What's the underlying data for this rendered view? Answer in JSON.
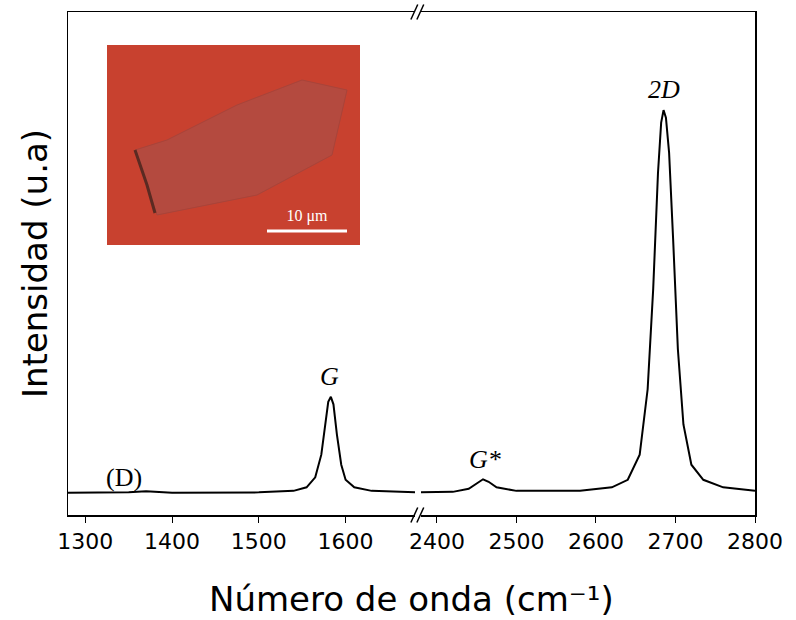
{
  "chart_data": {
    "type": "line",
    "xlabel": "Número de onda (cm⁻¹)",
    "ylabel": "Intensidad (u.a)",
    "color": "#000000",
    "x": [
      1280,
      1350,
      1370,
      1380,
      1400,
      1500,
      1540,
      1555,
      1565,
      1572,
      1577,
      1580,
      1583,
      1586,
      1590,
      1595,
      1600,
      1610,
      1630,
      1680,
      2380,
      2420,
      2440,
      2450,
      2458,
      2465,
      2475,
      2500,
      2580,
      2620,
      2640,
      2655,
      2665,
      2672,
      2678,
      2682,
      2685,
      2688,
      2692,
      2697,
      2703,
      2710,
      2720,
      2735,
      2760,
      2800
    ],
    "values": [
      0.044,
      0.045,
      0.047,
      0.046,
      0.044,
      0.045,
      0.048,
      0.055,
      0.075,
      0.12,
      0.19,
      0.225,
      0.235,
      0.22,
      0.16,
      0.1,
      0.07,
      0.055,
      0.048,
      0.045,
      0.045,
      0.046,
      0.052,
      0.062,
      0.071,
      0.066,
      0.055,
      0.048,
      0.048,
      0.055,
      0.07,
      0.12,
      0.25,
      0.45,
      0.68,
      0.78,
      0.805,
      0.79,
      0.72,
      0.55,
      0.33,
      0.18,
      0.1,
      0.07,
      0.055,
      0.048
    ],
    "xlim": [
      [
        1280,
        1680
      ],
      [
        2380,
        2800
      ]
    ],
    "xticks": [
      [
        1300,
        1400,
        1500,
        1600
      ],
      [
        2400,
        2500,
        2600,
        2700,
        2800
      ]
    ],
    "ylim": [
      0,
      1
    ],
    "tick_labels": "x",
    "grid": false,
    "annotations": [
      {
        "text": "(D)",
        "x": 1345,
        "y": 0.075
      },
      {
        "text": "G",
        "x": 1582,
        "y": 0.275
      },
      {
        "text": "G*",
        "x": 2460,
        "y": 0.11
      },
      {
        "text": "2D",
        "x": 2685,
        "y": 0.845
      }
    ],
    "inset": {
      "scale_bar": "10 μm"
    }
  }
}
